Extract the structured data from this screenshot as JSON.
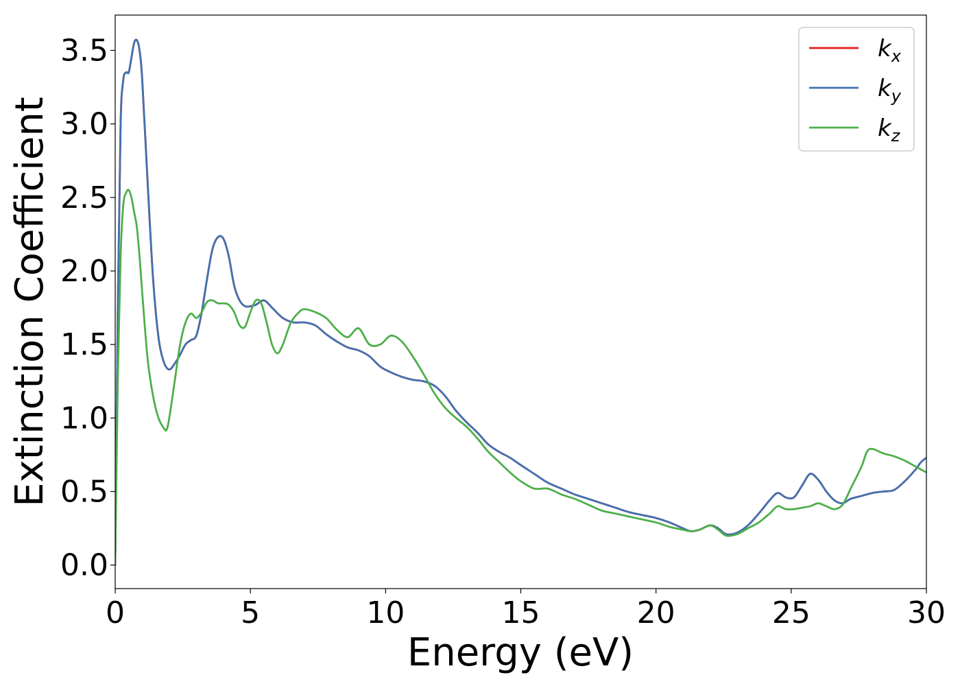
{
  "chart_data": {
    "type": "line",
    "title": "",
    "xlabel": "Energy (eV)",
    "ylabel": "Extinction Coefficient",
    "xlim": [
      0,
      30
    ],
    "ylim": [
      -0.16,
      3.74
    ],
    "xticks": [
      0,
      5,
      10,
      15,
      20,
      25,
      30
    ],
    "xtick_labels": [
      "0",
      "5",
      "10",
      "15",
      "20",
      "25",
      "30"
    ],
    "yticks": [
      0.0,
      0.5,
      1.0,
      1.5,
      2.0,
      2.5,
      3.0,
      3.5
    ],
    "ytick_labels": [
      "0.0",
      "0.5",
      "1.0",
      "1.5",
      "2.0",
      "2.5",
      "3.0",
      "3.5"
    ],
    "grid": false,
    "legend_position": "top-right",
    "series": [
      {
        "name": "k",
        "subscript": "x",
        "color": "#e41a1c",
        "x": [
          0,
          0.1,
          0.2,
          0.3,
          0.4,
          0.5,
          0.6,
          0.7,
          0.8,
          0.9,
          1.0,
          1.2,
          1.4,
          1.6,
          1.8,
          2.0,
          2.2,
          2.4,
          2.6,
          2.8,
          3.0,
          3.2,
          3.4,
          3.6,
          3.8,
          4.0,
          4.2,
          4.4,
          4.6,
          4.8,
          5.0,
          5.2,
          5.5,
          5.8,
          6.2,
          6.6,
          7.0,
          7.4,
          7.8,
          8.2,
          8.6,
          9.0,
          9.4,
          9.8,
          10.2,
          10.6,
          11.0,
          11.4,
          11.8,
          12.2,
          12.6,
          13.0,
          13.4,
          13.8,
          14.2,
          14.6,
          15.0,
          15.5,
          16.0,
          16.5,
          17.0,
          17.5,
          18.0,
          18.5,
          19.0,
          19.5,
          20.0,
          20.5,
          21.0,
          21.3,
          21.6,
          22.0,
          22.3,
          22.6,
          23.0,
          23.4,
          23.8,
          24.2,
          24.5,
          24.8,
          25.1,
          25.4,
          25.7,
          26.0,
          26.3,
          26.6,
          26.9,
          27.2,
          27.6,
          28.0,
          28.4,
          28.8,
          29.2,
          29.6,
          29.8,
          30.0
        ],
        "y": [
          0.0,
          1.8,
          3.0,
          3.3,
          3.35,
          3.35,
          3.45,
          3.55,
          3.57,
          3.5,
          3.3,
          2.6,
          1.95,
          1.55,
          1.38,
          1.33,
          1.37,
          1.43,
          1.5,
          1.53,
          1.56,
          1.72,
          1.95,
          2.15,
          2.23,
          2.22,
          2.1,
          1.9,
          1.8,
          1.76,
          1.76,
          1.77,
          1.8,
          1.75,
          1.68,
          1.65,
          1.65,
          1.63,
          1.57,
          1.52,
          1.48,
          1.46,
          1.42,
          1.35,
          1.31,
          1.28,
          1.26,
          1.25,
          1.22,
          1.15,
          1.05,
          0.97,
          0.9,
          0.82,
          0.77,
          0.73,
          0.68,
          0.62,
          0.56,
          0.52,
          0.48,
          0.45,
          0.42,
          0.39,
          0.36,
          0.34,
          0.32,
          0.29,
          0.25,
          0.23,
          0.24,
          0.27,
          0.25,
          0.21,
          0.22,
          0.27,
          0.35,
          0.44,
          0.49,
          0.46,
          0.46,
          0.54,
          0.62,
          0.58,
          0.5,
          0.44,
          0.42,
          0.45,
          0.47,
          0.49,
          0.5,
          0.51,
          0.57,
          0.65,
          0.7,
          0.73
        ]
      },
      {
        "name": "k",
        "subscript": "y",
        "color": "#4271b0",
        "x": [
          0,
          0.1,
          0.2,
          0.3,
          0.4,
          0.5,
          0.6,
          0.7,
          0.8,
          0.9,
          1.0,
          1.2,
          1.4,
          1.6,
          1.8,
          2.0,
          2.2,
          2.4,
          2.6,
          2.8,
          3.0,
          3.2,
          3.4,
          3.6,
          3.8,
          4.0,
          4.2,
          4.4,
          4.6,
          4.8,
          5.0,
          5.2,
          5.5,
          5.8,
          6.2,
          6.6,
          7.0,
          7.4,
          7.8,
          8.2,
          8.6,
          9.0,
          9.4,
          9.8,
          10.2,
          10.6,
          11.0,
          11.4,
          11.8,
          12.2,
          12.6,
          13.0,
          13.4,
          13.8,
          14.2,
          14.6,
          15.0,
          15.5,
          16.0,
          16.5,
          17.0,
          17.5,
          18.0,
          18.5,
          19.0,
          19.5,
          20.0,
          20.5,
          21.0,
          21.3,
          21.6,
          22.0,
          22.3,
          22.6,
          23.0,
          23.4,
          23.8,
          24.2,
          24.5,
          24.8,
          25.1,
          25.4,
          25.7,
          26.0,
          26.3,
          26.6,
          26.9,
          27.2,
          27.6,
          28.0,
          28.4,
          28.8,
          29.2,
          29.6,
          29.8,
          30.0
        ],
        "y": [
          0.0,
          1.8,
          3.0,
          3.3,
          3.35,
          3.35,
          3.45,
          3.55,
          3.57,
          3.5,
          3.3,
          2.6,
          1.95,
          1.55,
          1.38,
          1.33,
          1.37,
          1.43,
          1.5,
          1.53,
          1.56,
          1.72,
          1.95,
          2.15,
          2.23,
          2.22,
          2.1,
          1.9,
          1.8,
          1.76,
          1.76,
          1.77,
          1.8,
          1.75,
          1.68,
          1.65,
          1.65,
          1.63,
          1.57,
          1.52,
          1.48,
          1.46,
          1.42,
          1.35,
          1.31,
          1.28,
          1.26,
          1.25,
          1.22,
          1.15,
          1.05,
          0.97,
          0.9,
          0.82,
          0.77,
          0.73,
          0.68,
          0.62,
          0.56,
          0.52,
          0.48,
          0.45,
          0.42,
          0.39,
          0.36,
          0.34,
          0.32,
          0.29,
          0.25,
          0.23,
          0.24,
          0.27,
          0.25,
          0.21,
          0.22,
          0.27,
          0.35,
          0.44,
          0.49,
          0.46,
          0.46,
          0.54,
          0.62,
          0.58,
          0.5,
          0.44,
          0.42,
          0.45,
          0.47,
          0.49,
          0.5,
          0.51,
          0.57,
          0.65,
          0.7,
          0.73
        ]
      },
      {
        "name": "k",
        "subscript": "z",
        "color": "#4daf4a",
        "x": [
          0,
          0.1,
          0.2,
          0.3,
          0.4,
          0.5,
          0.6,
          0.7,
          0.8,
          0.9,
          1.0,
          1.2,
          1.4,
          1.6,
          1.8,
          1.9,
          2.0,
          2.2,
          2.4,
          2.6,
          2.8,
          3.0,
          3.2,
          3.4,
          3.6,
          3.8,
          4.0,
          4.2,
          4.4,
          4.6,
          4.8,
          5.0,
          5.2,
          5.4,
          5.6,
          5.8,
          6.0,
          6.2,
          6.5,
          6.8,
          7.0,
          7.4,
          7.8,
          8.2,
          8.6,
          9.0,
          9.4,
          9.8,
          10.2,
          10.6,
          11.0,
          11.4,
          11.8,
          12.2,
          12.6,
          13.0,
          13.4,
          13.8,
          14.2,
          14.6,
          15.0,
          15.5,
          16.0,
          16.5,
          17.0,
          17.5,
          18.0,
          18.5,
          19.0,
          19.5,
          20.0,
          20.5,
          21.0,
          21.3,
          21.6,
          22.0,
          22.3,
          22.6,
          23.0,
          23.4,
          23.8,
          24.2,
          24.5,
          24.8,
          25.1,
          25.4,
          25.7,
          26.0,
          26.3,
          26.6,
          26.9,
          27.2,
          27.6,
          27.8,
          28.0,
          28.4,
          28.8,
          29.2,
          29.6,
          30.0
        ],
        "y": [
          0.0,
          1.3,
          2.1,
          2.45,
          2.53,
          2.55,
          2.5,
          2.4,
          2.3,
          2.1,
          1.85,
          1.4,
          1.15,
          1.0,
          0.93,
          0.92,
          1.0,
          1.25,
          1.5,
          1.65,
          1.71,
          1.68,
          1.72,
          1.79,
          1.8,
          1.78,
          1.78,
          1.77,
          1.72,
          1.63,
          1.62,
          1.72,
          1.8,
          1.78,
          1.65,
          1.5,
          1.44,
          1.5,
          1.65,
          1.72,
          1.74,
          1.72,
          1.68,
          1.6,
          1.55,
          1.61,
          1.5,
          1.5,
          1.56,
          1.52,
          1.42,
          1.3,
          1.17,
          1.07,
          1.0,
          0.94,
          0.86,
          0.77,
          0.7,
          0.63,
          0.57,
          0.52,
          0.52,
          0.48,
          0.45,
          0.41,
          0.37,
          0.35,
          0.33,
          0.31,
          0.29,
          0.26,
          0.24,
          0.23,
          0.24,
          0.27,
          0.24,
          0.2,
          0.21,
          0.25,
          0.29,
          0.35,
          0.4,
          0.38,
          0.38,
          0.39,
          0.4,
          0.42,
          0.4,
          0.38,
          0.41,
          0.52,
          0.67,
          0.77,
          0.79,
          0.76,
          0.74,
          0.71,
          0.67,
          0.63
        ]
      }
    ]
  }
}
